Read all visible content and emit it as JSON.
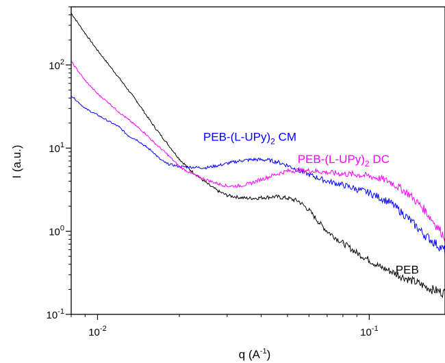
{
  "chart_data": {
    "type": "line",
    "xscale": "log",
    "yscale": "log",
    "xlim": [
      0.008,
      0.19
    ],
    "ylim": [
      0.1,
      500
    ],
    "xlabel": {
      "base": "q (A",
      "sup": "-1",
      "tail": ")"
    },
    "ylabel": "I (a.u.)",
    "x_ticks": [
      {
        "value": 0.01,
        "base": "10",
        "exp": "-2"
      },
      {
        "value": 0.1,
        "base": "10",
        "exp": "-1"
      }
    ],
    "y_ticks": [
      {
        "value": 0.1,
        "base": "10",
        "exp": "-1"
      },
      {
        "value": 1,
        "base": "10",
        "exp": "0"
      },
      {
        "value": 10,
        "base": "10",
        "exp": "1"
      },
      {
        "value": 100,
        "base": "10",
        "exp": "2"
      }
    ],
    "grid": false,
    "series": [
      {
        "name": "PEB",
        "label_parts": {
          "main": "PEB",
          "sub": "",
          "tail": ""
        },
        "color": "#000000",
        "label_at": {
          "q": 0.125,
          "I": 0.31
        },
        "x": [
          0.008,
          0.009,
          0.01,
          0.012,
          0.014,
          0.016,
          0.018,
          0.02,
          0.022,
          0.024,
          0.026,
          0.028,
          0.03,
          0.032,
          0.035,
          0.038,
          0.041,
          0.045,
          0.05,
          0.055,
          0.06,
          0.065,
          0.07,
          0.08,
          0.09,
          0.1,
          0.11,
          0.12,
          0.13,
          0.15,
          0.17,
          0.19
        ],
        "y": [
          420,
          240,
          150,
          70,
          36,
          19,
          11.5,
          7.4,
          5.4,
          4.3,
          3.5,
          3.0,
          2.7,
          2.6,
          2.5,
          2.5,
          2.55,
          2.6,
          2.5,
          2.3,
          1.8,
          1.3,
          1.0,
          0.72,
          0.55,
          0.45,
          0.37,
          0.33,
          0.29,
          0.24,
          0.2,
          0.18
        ]
      },
      {
        "name": "PEB-(L-UPy)2 CM",
        "label_parts": {
          "main": "PEB-(L-UPy)",
          "sub": "2",
          "tail": " CM"
        },
        "color": "#0000ff",
        "label_at": {
          "q": 0.0245,
          "I": 12.2
        },
        "x": [
          0.008,
          0.009,
          0.01,
          0.011,
          0.012,
          0.013,
          0.014,
          0.015,
          0.016,
          0.017,
          0.018,
          0.02,
          0.022,
          0.025,
          0.028,
          0.031,
          0.034,
          0.038,
          0.042,
          0.046,
          0.05,
          0.055,
          0.06,
          0.07,
          0.08,
          0.09,
          0.1,
          0.12,
          0.14,
          0.16,
          0.19
        ],
        "y": [
          43,
          30,
          25,
          21,
          18,
          14,
          12.5,
          10.5,
          9.0,
          7.3,
          6.5,
          6.0,
          5.9,
          5.8,
          6.2,
          6.7,
          7.1,
          7.3,
          7.2,
          6.8,
          6.2,
          5.4,
          4.8,
          4.0,
          3.6,
          3.2,
          2.9,
          2.2,
          1.4,
          0.9,
          0.58
        ]
      },
      {
        "name": "PEB-(L-UPy)2 DC",
        "label_parts": {
          "main": "PEB-(L-UPy)",
          "sub": "2",
          "tail": " DC"
        },
        "color": "#ff00ff",
        "label_at": {
          "q": 0.0545,
          "I": 6.6
        },
        "x": [
          0.008,
          0.009,
          0.01,
          0.011,
          0.012,
          0.013,
          0.014,
          0.015,
          0.016,
          0.018,
          0.02,
          0.022,
          0.024,
          0.026,
          0.028,
          0.03,
          0.033,
          0.036,
          0.04,
          0.045,
          0.05,
          0.055,
          0.06,
          0.065,
          0.07,
          0.08,
          0.09,
          0.1,
          0.11,
          0.12,
          0.14,
          0.16,
          0.19
        ],
        "y": [
          110,
          65,
          45,
          35,
          27,
          22,
          18,
          15,
          12,
          8.5,
          6.0,
          5.0,
          4.4,
          4.0,
          3.7,
          3.5,
          3.5,
          3.7,
          4.2,
          4.8,
          5.3,
          5.4,
          5.35,
          5.25,
          5.1,
          4.9,
          4.8,
          4.6,
          4.3,
          3.9,
          2.8,
          1.8,
          0.85
        ]
      }
    ]
  }
}
